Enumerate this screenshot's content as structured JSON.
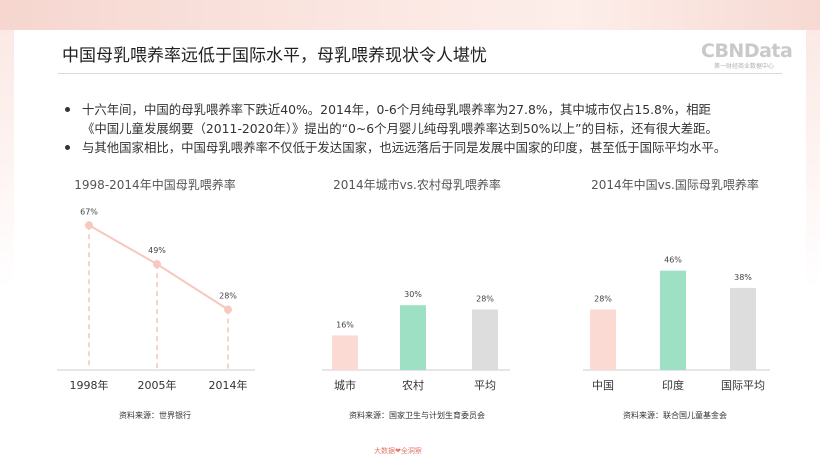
{
  "header": {
    "title": "中国母乳喂养率远低于国际水平，母乳喂养现状令人堪忧",
    "logo_main": "CBNData",
    "logo_sub": "第一财经商业数据中心"
  },
  "bullets": [
    {
      "lines": [
        "十六年间，中国的母乳喂养率下跌近40%。2014年，0-6个月纯母乳喂养率为27.8%，其中城市仅占15.8%，相距",
        "《中国儿童发展纲要（2011-2020年）》提出的“0~6个月婴儿纯母乳喂养率达到50%以上”的目标，还有很大差距。"
      ]
    },
    {
      "lines": [
        "与其他国家相比，中国母乳喂养率不仅低于发达国家，也远远落后于同是发展中国家的印度，甚至低于国际平均水平。"
      ]
    }
  ],
  "chart_data": [
    {
      "type": "line",
      "title": "1998-2014年中国母乳喂养率",
      "categories": [
        "1998年",
        "2005年",
        "2014年"
      ],
      "values": [
        67,
        49,
        28
      ],
      "value_labels": [
        "67%",
        "49%",
        "28%"
      ],
      "ylim": [
        0,
        100
      ],
      "source": "资料来源：世界银行",
      "color": "#f7c8bf"
    },
    {
      "type": "bar",
      "title": "2014年城市vs.农村母乳喂养率",
      "categories": [
        "城市",
        "农村",
        "平均"
      ],
      "values": [
        16,
        30,
        28
      ],
      "value_labels": [
        "16%",
        "30%",
        "28%"
      ],
      "ylim": [
        0,
        100
      ],
      "colors": [
        "#fadad3",
        "#9ee0c4",
        "#dddddd"
      ],
      "source": "资料来源：国家卫生与计划生育委员会"
    },
    {
      "type": "bar",
      "title": "2014年中国vs.国际母乳喂养率",
      "categories": [
        "中国",
        "印度",
        "国际平均"
      ],
      "values": [
        28,
        46,
        38
      ],
      "value_labels": [
        "28%",
        "46%",
        "38%"
      ],
      "ylim": [
        0,
        100
      ],
      "colors": [
        "#fadad3",
        "#9ee0c4",
        "#dddddd"
      ],
      "source": "资料来源：联合国儿童基金会"
    }
  ],
  "footer": {
    "mark": "大数据❤全洞察"
  },
  "theme": {
    "accent": "#f0a99c",
    "axis": "#cccccc"
  }
}
